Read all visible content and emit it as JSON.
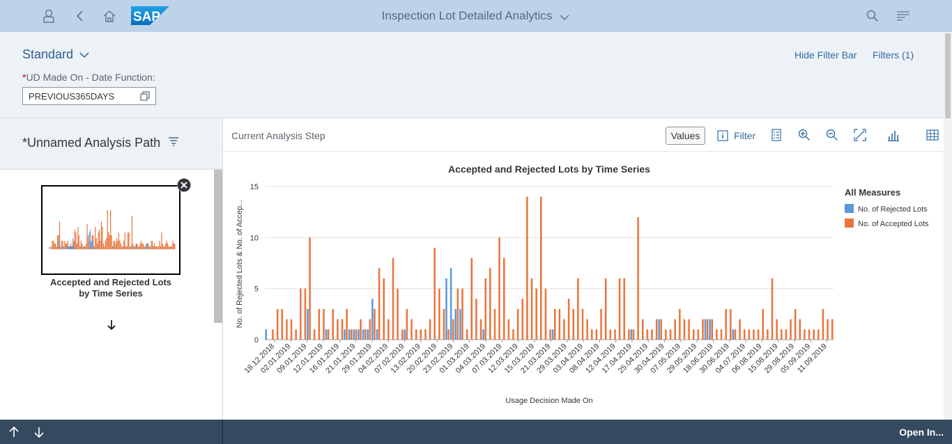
{
  "shell": {
    "title": "Inspection Lot Detailed Analytics",
    "logo_text": "SAP",
    "colors": {
      "shellbar": "#bfd3e8",
      "logo": "#1b8fd6"
    }
  },
  "filter_bar": {
    "variant": "Standard",
    "hide_filter_bar": "Hide Filter Bar",
    "filters": "Filters (1)",
    "required_mark": "*",
    "field_label": "UD Made On - Date Function:",
    "field_value": "PREVIOUS365DAYS"
  },
  "analysis_path": {
    "title": "*Unnamed Analysis Path",
    "step_label_line1": "Accepted and Rejected Lots",
    "step_label_line2": "by Time Series"
  },
  "toolbar": {
    "current_step": "Current Analysis Step",
    "values": "Values",
    "filter": "Filter"
  },
  "footer": {
    "open_in": "Open In..."
  },
  "chart_data": {
    "type": "bar",
    "title": "Accepted and Rejected Lots by Time Series",
    "xlabel": "Usage Decision Made On",
    "ylabel": "No. of Rejected Lots & No. of Accep...",
    "ylim": [
      0,
      15
    ],
    "yticks": [
      0,
      5,
      10,
      15
    ],
    "grid": true,
    "legend_title": "All Measures",
    "legend_position": "right",
    "series": [
      {
        "name": "No. of Rejected Lots",
        "color": "#5899da",
        "values": [
          1,
          0,
          0,
          0,
          0,
          0,
          0,
          0,
          0,
          3,
          0,
          0,
          0,
          1,
          0,
          0,
          0,
          1,
          1,
          1,
          1,
          1,
          1,
          4,
          1,
          0,
          0,
          0,
          0,
          0,
          1,
          0,
          0,
          0,
          0,
          0,
          0,
          0,
          0,
          6,
          7,
          3,
          3,
          0,
          0,
          0,
          0,
          1,
          0,
          0,
          0,
          0,
          0,
          0,
          0,
          0,
          0,
          0,
          0,
          0,
          0,
          0,
          1,
          0,
          0,
          0,
          0,
          0,
          0,
          0,
          0,
          0,
          0,
          0,
          0,
          0,
          0,
          0,
          0,
          1,
          0,
          0,
          0,
          0,
          0,
          2,
          0,
          0,
          0,
          0,
          0,
          0,
          0,
          0,
          0,
          2,
          2,
          0,
          0,
          0,
          0,
          1,
          0,
          0,
          0,
          0,
          0,
          0,
          0,
          0,
          0,
          0,
          0,
          0,
          0,
          0,
          0,
          0,
          0,
          0,
          0,
          0,
          0
        ]
      },
      {
        "name": "No. of Accepted Lots",
        "color": "#e8743b",
        "values": [
          0,
          1,
          3,
          3,
          2,
          2,
          1,
          5,
          5,
          10,
          1,
          3,
          3,
          1,
          3,
          2,
          2,
          3,
          1,
          1,
          2,
          1,
          2,
          3,
          7,
          6,
          2,
          8,
          5,
          1,
          3,
          2,
          1,
          1,
          1,
          2,
          9,
          5,
          3,
          1,
          2,
          5,
          5,
          1,
          8,
          4,
          2,
          6,
          7,
          3,
          10,
          8,
          2,
          1,
          3,
          4,
          14,
          6,
          5,
          14,
          5,
          1,
          3,
          3,
          2,
          4,
          3,
          6,
          3,
          2,
          1,
          1,
          3,
          6,
          1,
          1,
          6,
          6,
          1,
          1,
          12,
          2,
          1,
          1,
          2,
          2,
          1,
          1,
          2,
          3,
          2,
          2,
          1,
          1,
          2,
          2,
          2,
          1,
          1,
          3,
          3,
          1,
          2,
          1,
          1,
          1,
          1,
          3,
          1,
          6,
          2,
          1,
          1,
          2,
          3,
          2,
          1,
          1,
          1,
          1,
          3,
          2,
          2
        ]
      }
    ],
    "x_tick_labels": [
      "18.12.2018",
      "02.01.2019",
      "09.01.2019",
      "12.01.2019",
      "16.01.2019",
      "21.01.2019",
      "29.01.2019",
      "04.02.2019",
      "07.02.2019",
      "13.02.2019",
      "20.02.2019",
      "23.02.2019",
      "01.03.2019",
      "04.03.2019",
      "07.03.2019",
      "12.03.2019",
      "15.03.2019",
      "21.03.2019",
      "29.03.2019",
      "03.04.2019",
      "08.04.2019",
      "12.04.2019",
      "17.04.2019",
      "25.04.2019",
      "30.04.2019",
      "07.05.2019",
      "29.05.2019",
      "18.06.2019",
      "30.06.2019",
      "04.07.2019",
      "06.08.2019",
      "15.08.2019",
      "29.08.2019",
      "05.09.2019",
      "11.09.2019"
    ]
  }
}
